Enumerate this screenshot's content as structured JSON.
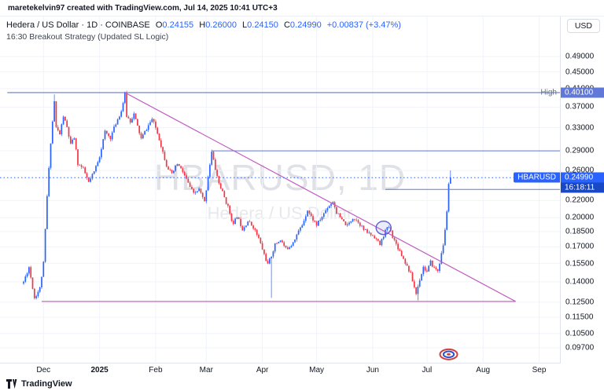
{
  "header": {
    "attribution": "maretekelvin97 created with TradingView.com, Jul 14, 2025 10:41 UTC+3"
  },
  "legend": {
    "symbol": "Hedera / US Dollar · 1D · COINBASE",
    "o_label": "O",
    "o": "0.24155",
    "h_label": "H",
    "h": "0.26000",
    "l_label": "L",
    "l": "0.24150",
    "c_label": "C",
    "c": "0.24990",
    "change": "+0.00837 (+3.47%)",
    "strategy": "16:30 Breakout Strategy (Updated SL Logic)"
  },
  "watermark": {
    "line1": "HBARUSD, 1D",
    "line2": "Hedera / US Dollar"
  },
  "axis": {
    "unit": "USD"
  },
  "footer": {
    "brand": "TradingView"
  },
  "colors": {
    "up": "#2962ff",
    "down": "#f23645",
    "grid": "#f0f3fa",
    "line_blue": "#6078d8",
    "line_purple": "#c05cc0",
    "countdown_bg": "#1848c4",
    "text": "#131722",
    "muted": "#787b86"
  },
  "chart_data": {
    "type": "candlestick",
    "title": "Hedera / US Dollar · 1D · COINBASE",
    "symbol": "HBARUSD",
    "exchange": "COINBASE",
    "timeframe": "1D",
    "scale": "log",
    "y_range": [
      0.092,
      0.52
    ],
    "symbol_label": "HBARUSD",
    "last_price_label": "0.24990",
    "countdown": "16:18:11",
    "last_candle": {
      "o": 0.24155,
      "h": 0.26,
      "l": 0.2415,
      "c": 0.2499
    },
    "days_total": 236,
    "y_ticks": [
      {
        "p": 0.49,
        "label": "0.49000"
      },
      {
        "p": 0.45,
        "label": "0.45000"
      },
      {
        "p": 0.41,
        "label": "0.41000"
      },
      {
        "p": 0.37,
        "label": "0.37000"
      },
      {
        "p": 0.33,
        "label": "0.33000"
      },
      {
        "p": 0.29,
        "label": "0.29000"
      },
      {
        "p": 0.26,
        "label": "0.26000"
      },
      {
        "p": 0.22,
        "label": "0.22000"
      },
      {
        "p": 0.2,
        "label": "0.20000"
      },
      {
        "p": 0.185,
        "label": "0.18500"
      },
      {
        "p": 0.17,
        "label": "0.17000"
      },
      {
        "p": 0.155,
        "label": "0.15500"
      },
      {
        "p": 0.14,
        "label": "0.14000"
      },
      {
        "p": 0.125,
        "label": "0.12500"
      },
      {
        "p": 0.115,
        "label": "0.11500"
      },
      {
        "p": 0.105,
        "label": "0.10500"
      },
      {
        "p": 0.097,
        "label": "0.09700"
      }
    ],
    "x_ticks": [
      {
        "label": "Dec",
        "day": 11
      },
      {
        "label": "2025",
        "day": 42,
        "year": true
      },
      {
        "label": "Feb",
        "day": 73
      },
      {
        "label": "Mar",
        "day": 101
      },
      {
        "label": "Apr",
        "day": 132
      },
      {
        "label": "May",
        "day": 162
      },
      {
        "label": "Jun",
        "day": 193
      },
      {
        "label": "Jul",
        "day": 223
      },
      {
        "label": "Aug",
        "day": 254
      },
      {
        "label": "Sep",
        "day": 285
      }
    ],
    "anchors": [
      [
        0,
        0.14
      ],
      [
        3,
        0.152
      ],
      [
        6,
        0.128
      ],
      [
        9,
        0.135
      ],
      [
        11,
        0.155
      ],
      [
        13,
        0.225
      ],
      [
        15,
        0.305
      ],
      [
        17,
        0.382
      ],
      [
        18,
        0.33
      ],
      [
        20,
        0.318
      ],
      [
        22,
        0.352
      ],
      [
        24,
        0.33
      ],
      [
        26,
        0.3
      ],
      [
        28,
        0.312
      ],
      [
        30,
        0.27
      ],
      [
        33,
        0.262
      ],
      [
        36,
        0.243
      ],
      [
        39,
        0.258
      ],
      [
        42,
        0.282
      ],
      [
        45,
        0.322
      ],
      [
        48,
        0.312
      ],
      [
        51,
        0.338
      ],
      [
        54,
        0.362
      ],
      [
        56,
        0.398
      ],
      [
        57,
        0.352
      ],
      [
        59,
        0.342
      ],
      [
        61,
        0.356
      ],
      [
        63,
        0.332
      ],
      [
        65,
        0.31
      ],
      [
        67,
        0.322
      ],
      [
        69,
        0.334
      ],
      [
        71,
        0.346
      ],
      [
        73,
        0.33
      ],
      [
        75,
        0.31
      ],
      [
        77,
        0.288
      ],
      [
        79,
        0.268
      ],
      [
        82,
        0.254
      ],
      [
        85,
        0.27
      ],
      [
        88,
        0.258
      ],
      [
        91,
        0.242
      ],
      [
        94,
        0.228
      ],
      [
        97,
        0.234
      ],
      [
        100,
        0.218
      ],
      [
        102,
        0.252
      ],
      [
        104,
        0.288
      ],
      [
        106,
        0.262
      ],
      [
        108,
        0.242
      ],
      [
        110,
        0.23
      ],
      [
        113,
        0.212
      ],
      [
        116,
        0.192
      ],
      [
        118,
        0.202
      ],
      [
        121,
        0.188
      ],
      [
        124,
        0.196
      ],
      [
        127,
        0.19
      ],
      [
        130,
        0.178
      ],
      [
        133,
        0.163
      ],
      [
        135,
        0.154
      ],
      [
        137,
        0.162
      ],
      [
        139,
        0.172
      ],
      [
        142,
        0.177
      ],
      [
        145,
        0.168
      ],
      [
        148,
        0.172
      ],
      [
        151,
        0.182
      ],
      [
        154,
        0.192
      ],
      [
        157,
        0.209
      ],
      [
        159,
        0.201
      ],
      [
        162,
        0.192
      ],
      [
        165,
        0.201
      ],
      [
        168,
        0.212
      ],
      [
        171,
        0.219
      ],
      [
        173,
        0.206
      ],
      [
        176,
        0.197
      ],
      [
        179,
        0.191
      ],
      [
        182,
        0.2
      ],
      [
        185,
        0.196
      ],
      [
        188,
        0.187
      ],
      [
        191,
        0.183
      ],
      [
        194,
        0.18
      ],
      [
        197,
        0.172
      ],
      [
        200,
        0.186
      ],
      [
        202,
        0.19
      ],
      [
        205,
        0.176
      ],
      [
        208,
        0.166
      ],
      [
        211,
        0.156
      ],
      [
        214,
        0.146
      ],
      [
        217,
        0.131
      ],
      [
        219,
        0.142
      ],
      [
        221,
        0.152
      ],
      [
        223,
        0.148
      ],
      [
        225,
        0.156
      ],
      [
        227,
        0.151
      ],
      [
        229,
        0.149
      ],
      [
        231,
        0.163
      ],
      [
        232,
        0.172
      ],
      [
        233,
        0.186
      ],
      [
        234,
        0.208
      ],
      [
        235,
        0.2415
      ],
      [
        236,
        0.2499
      ]
    ],
    "spikes": [
      {
        "day": 17,
        "high": 0.397
      },
      {
        "day": 56,
        "high": 0.401
      },
      {
        "day": 137,
        "low": 0.128
      },
      {
        "day": 218,
        "low": 0.1262
      }
    ],
    "lines": [
      {
        "name": "high-horizontal-line",
        "label": "High",
        "axis_label": "0.40100",
        "price": 0.401,
        "from_day": -9,
        "to_day": 297,
        "color_key": "line_blue"
      },
      {
        "name": "resistance-line-029",
        "price": 0.29,
        "from_day": 104,
        "to_day": 297,
        "color_key": "line_blue"
      },
      {
        "name": "resistance-line-0234",
        "price": 0.234,
        "from_day": 200,
        "to_day": 297,
        "color_key": "line_blue"
      },
      {
        "name": "descending-trendline",
        "from": [
          56,
          0.401
        ],
        "to": [
          272,
          0.1255
        ],
        "color_key": "line_purple"
      },
      {
        "name": "horizontal-support-trendline",
        "from": [
          10,
          0.1255
        ],
        "to": [
          272,
          0.1255
        ],
        "color_key": "line_purple"
      }
    ],
    "markers": [
      {
        "type": "circle",
        "day": 199,
        "price": 0.189
      },
      {
        "type": "sticker",
        "day": 235,
        "price": 0.0935
      }
    ]
  }
}
